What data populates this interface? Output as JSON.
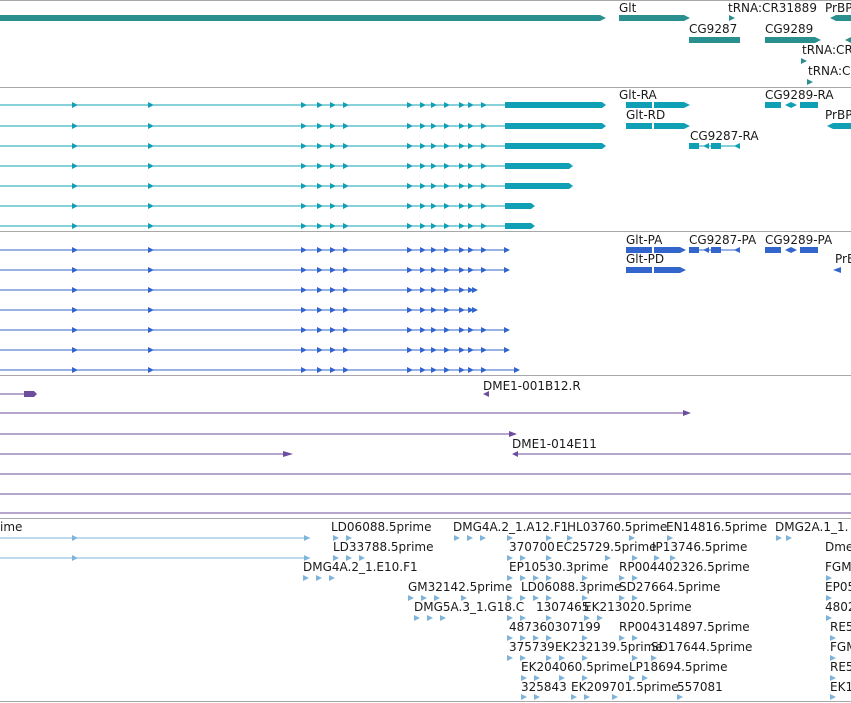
{
  "colors": {
    "gene": "#2a8f8f",
    "transcript_rna": "#10a0b6",
    "transcript_protein": "#3366cc",
    "clone": "#6d4d9e",
    "est": "#7eb4dc",
    "separator": "#a8a8a8",
    "label": "#1a1a1a"
  },
  "tracks": {
    "genes": {
      "labels": {
        "glt": "Glt",
        "trna_cr31889": "tRNA:CR31889",
        "prbp_1": "PrBP",
        "cg9287": "CG9287",
        "cg9289": "CG9289",
        "trna_cr_a": "tRNA:CR",
        "trna_cr_b": "tRNA:C"
      }
    },
    "transcripts_rna": {
      "labels": {
        "glt_ra": "Glt-RA",
        "cg9289_ra": "CG9289-RA",
        "glt_rd": "Glt-RD",
        "prbp_2": "PrBP",
        "cg9287_ra": "CG9287-RA"
      }
    },
    "transcripts_protein": {
      "labels": {
        "glt_pa": "Glt-PA",
        "cg9287_pa": "CG9287-PA",
        "cg9289_pa": "CG9289-PA",
        "glt_pd": "Glt-PD",
        "prb_3": "PrB"
      }
    },
    "clones": {
      "labels": {
        "dme1_001b12_r": "DME1-001B12.R",
        "dme1_014e11": "DME1-014E11"
      }
    },
    "ests": {
      "labels": {
        "ime": "ime",
        "ld06088_5prime": "LD06088.5prime",
        "dmg4a2_1a12_f1": "DMG4A.2_1.A12.F1",
        "hl03760_5prime": "HL03760.5prime",
        "en14816_5prime": "EN14816.5prime",
        "dmg2a1_1": "DMG2A.1_1.",
        "ld33788_5prime": "LD33788.5prime",
        "n370700": "370700",
        "ec25729_5prime": "EC25729.5prime",
        "ip13746_5prime": "IP13746.5prime",
        "dme_edge": "Dme",
        "dmg4a2_1e10_f1": "DMG4A.2_1.E10.F1",
        "ep10530_3prime": "EP10530.3prime",
        "rp004402326_5prime": "RP004402326.5prime",
        "fgm_1": "FGM",
        "gm32142_5prime": "GM32142.5prime",
        "ld06088_3prime": "LD06088.3prime",
        "sd27664_5prime": "SD27664.5prime",
        "ep05": "EP05",
        "dmg5a3_1g18_c": "DMG5A.3_1.G18.C",
        "n1307465": "1307465",
        "ek213020_5prime": "EK213020.5prime",
        "n4802": "4802",
        "n487360307199": "487360307199",
        "rp004314897_5prime": "RP004314897.5prime",
        "re5_1": "RE5",
        "n375739": "375739",
        "ek232139_5prime": "EK232139.5prime",
        "sd17644_5prime": "SD17644.5prime",
        "fgm_2": "FGM",
        "ek204060_5prime": "EK204060.5prime",
        "lp18694_5prime": "LP18694.5prime",
        "re5_2": "RE5",
        "n325843": "325843",
        "ek209701_5prime": "EK209701.5prime",
        "n557081": "557081",
        "ek_edge": "EK1"
      }
    }
  }
}
